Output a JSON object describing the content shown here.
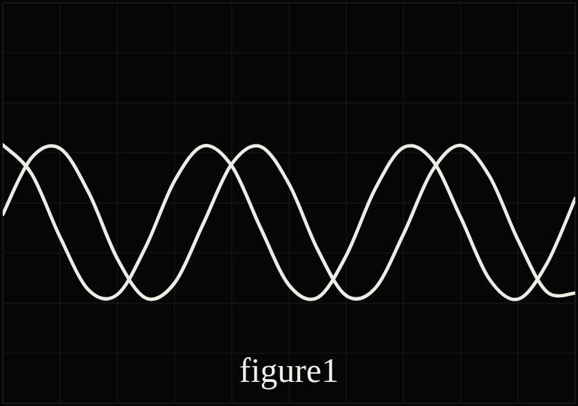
{
  "chart_data": {
    "type": "line",
    "title": "figure1",
    "x": [
      0,
      0.5,
      1,
      1.5,
      2,
      2.5,
      3,
      3.5,
      4,
      4.5,
      5,
      5.5,
      6,
      6.5,
      7,
      7.5,
      8,
      8.5,
      9,
      9.5,
      10
    ],
    "series": [
      {
        "color": "#ecece4",
        "line_style": "solid",
        "values": [
          1.16,
          0.59,
          -0.68,
          -1.74,
          -1.83,
          -0.87,
          0.44,
          1.14,
          0.74,
          -0.49,
          -1.64,
          -1.89,
          -1.05,
          0.27,
          1.11,
          0.86,
          -0.29,
          -1.52,
          -1.92,
          -1.22,
          0.09
        ]
      },
      {
        "color": "#ecece4",
        "line_style": "solid",
        "values": [
          -0.23,
          0.9,
          1.09,
          0.21,
          -1.11,
          -1.9,
          -1.6,
          -0.42,
          0.78,
          1.13,
          0.38,
          -0.93,
          -1.85,
          -1.71,
          -0.62,
          0.64,
          1.15,
          0.54,
          -0.74,
          -1.77,
          -1.8
        ]
      }
    ],
    "xlim": [
      0,
      10
    ],
    "ylim": [
      -4,
      4
    ],
    "xticks": [
      0,
      1,
      2,
      3,
      4,
      5,
      6,
      7,
      8,
      9,
      10
    ],
    "yticks": [
      -4,
      -3,
      -2,
      -1,
      0,
      1,
      2,
      3,
      4
    ],
    "grid": true,
    "tick_labels": false
  }
}
